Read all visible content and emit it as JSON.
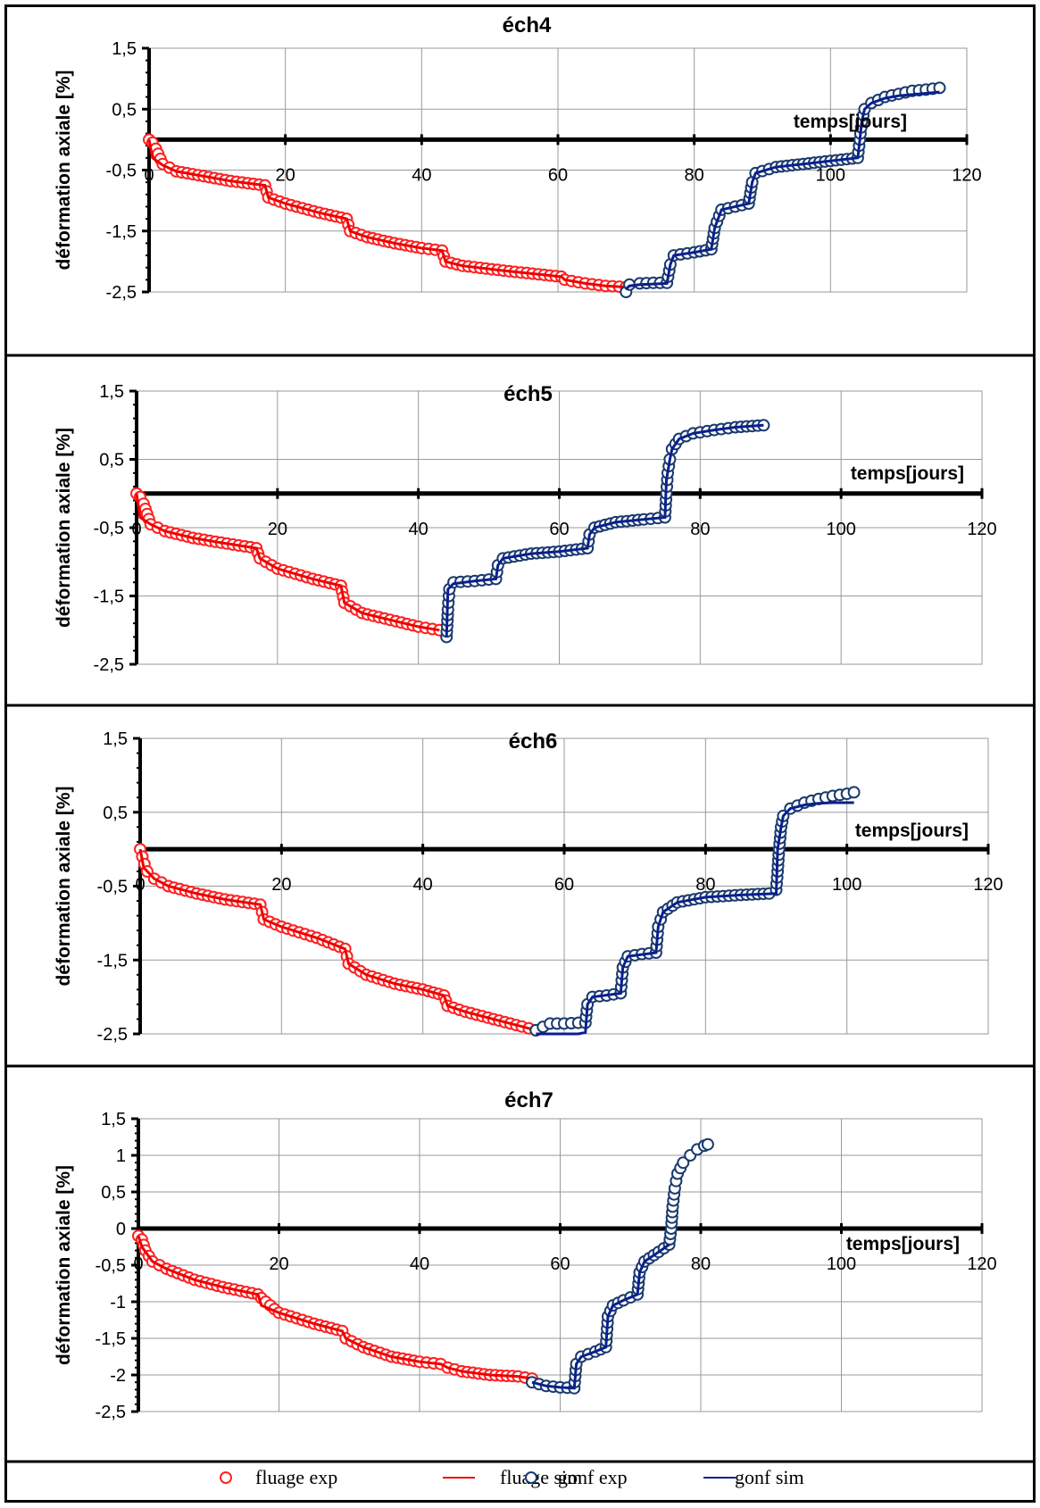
{
  "colors": {
    "fluage_exp": "#ff2020",
    "fluage_sim": "#ee0000",
    "gonf_exp": "#1a3a6e",
    "gonf_sim": "#0a1f8f",
    "border": "#000000",
    "grid": "#9a9a9a"
  },
  "legend": {
    "items": [
      {
        "marker": "circle",
        "series": "fluage_exp",
        "label": "fluage exp"
      },
      {
        "marker": "line",
        "series": "fluage_sim",
        "label": "fluage sim"
      },
      {
        "marker": "circle",
        "series": "gonf_exp",
        "label": "gonf exp"
      },
      {
        "marker": "line",
        "series": "gonf_sim",
        "label": "gonf sim"
      }
    ]
  },
  "chart_data": [
    {
      "type": "scatter",
      "title": "éch4",
      "xlabel": "temps[jours]",
      "ylabel": "déformation axiale [%]",
      "xlim": [
        0,
        120
      ],
      "ylim": [
        -2.5,
        1.5
      ],
      "xticks": [
        "0",
        "20",
        "40",
        "60",
        "80",
        "100",
        "120"
      ],
      "yticks": [
        "1,5",
        "0,5",
        "-0,5",
        "-1,5",
        "-2,5"
      ],
      "grid": true,
      "series": [
        {
          "name": "fluage exp",
          "key": "fluage_exp",
          "kind": "markers",
          "x": [
            0,
            0.5,
            1,
            2,
            4,
            8,
            12,
            17,
            17.5,
            20,
            25,
            29,
            29.5,
            32,
            36,
            40,
            43,
            43.5,
            46,
            52,
            58,
            60.5,
            61,
            64,
            67,
            70
          ],
          "y": [
            0.0,
            -0.05,
            -0.15,
            -0.4,
            -0.52,
            -0.6,
            -0.68,
            -0.75,
            -0.95,
            -1.05,
            -1.2,
            -1.3,
            -1.5,
            -1.6,
            -1.7,
            -1.78,
            -1.82,
            -2.0,
            -2.07,
            -2.15,
            -2.22,
            -2.25,
            -2.3,
            -2.36,
            -2.4,
            -2.42
          ]
        },
        {
          "name": "fluage sim",
          "key": "fluage_sim",
          "kind": "line",
          "x": [
            0,
            0.5,
            2,
            4,
            8,
            12,
            17,
            17.5,
            20,
            25,
            29,
            29.5,
            32,
            36,
            40,
            43,
            43.5,
            46,
            52,
            58,
            60.5,
            61,
            64,
            67,
            70
          ],
          "y": [
            0.0,
            -0.3,
            -0.42,
            -0.52,
            -0.6,
            -0.68,
            -0.75,
            -0.95,
            -1.05,
            -1.2,
            -1.3,
            -1.5,
            -1.6,
            -1.7,
            -1.78,
            -1.82,
            -2.0,
            -2.07,
            -2.15,
            -2.22,
            -2.25,
            -2.3,
            -2.36,
            -2.4,
            -2.42
          ]
        },
        {
          "name": "gonf exp",
          "key": "gonf_exp",
          "kind": "markers",
          "x": [
            70,
            70.5,
            72,
            74,
            76,
            76.5,
            77,
            80,
            82.5,
            83,
            84,
            86,
            88,
            88.5,
            89,
            92,
            96,
            100,
            104,
            104.3,
            104.6,
            105,
            106,
            108,
            110,
            112,
            114,
            116
          ],
          "y": [
            -2.5,
            -2.38,
            -2.36,
            -2.35,
            -2.35,
            -2.05,
            -1.9,
            -1.85,
            -1.8,
            -1.45,
            -1.15,
            -1.1,
            -1.05,
            -0.7,
            -0.55,
            -0.45,
            -0.4,
            -0.35,
            -0.3,
            0.0,
            0.3,
            0.5,
            0.6,
            0.7,
            0.75,
            0.8,
            0.82,
            0.85
          ]
        },
        {
          "name": "gonf sim",
          "key": "gonf_sim",
          "kind": "line",
          "x": [
            70,
            70.5,
            72,
            74,
            76,
            76.5,
            77,
            80,
            82.5,
            83,
            84,
            86,
            88,
            88.5,
            89,
            92,
            96,
            100,
            104,
            104.3,
            104.6,
            105,
            106,
            108,
            110,
            112,
            114,
            116
          ],
          "y": [
            -2.45,
            -2.4,
            -2.38,
            -2.37,
            -2.36,
            -2.05,
            -1.9,
            -1.85,
            -1.8,
            -1.45,
            -1.15,
            -1.1,
            -1.05,
            -0.7,
            -0.55,
            -0.45,
            -0.4,
            -0.35,
            -0.3,
            0.0,
            0.3,
            0.5,
            0.6,
            0.68,
            0.72,
            0.74,
            0.76,
            0.78
          ]
        }
      ]
    },
    {
      "type": "scatter",
      "title": "éch5",
      "xlabel": "temps[jours]",
      "ylabel": "déformation axiale [%]",
      "xlim": [
        0,
        120
      ],
      "ylim": [
        -2.5,
        1.5
      ],
      "xticks": [
        "0",
        "20",
        "40",
        "60",
        "80",
        "100",
        "120"
      ],
      "yticks": [
        "1,5",
        "0,5",
        "-0,5",
        "-1,5",
        "-2,5"
      ],
      "grid": true,
      "series": [
        {
          "name": "fluage exp",
          "key": "fluage_exp",
          "kind": "markers",
          "x": [
            0,
            0.5,
            1,
            2,
            4,
            8,
            12,
            17,
            17.5,
            20,
            25,
            29,
            29.5,
            32,
            36,
            40,
            43
          ],
          "y": [
            0.0,
            -0.05,
            -0.15,
            -0.45,
            -0.55,
            -0.65,
            -0.72,
            -0.8,
            -0.95,
            -1.1,
            -1.25,
            -1.35,
            -1.6,
            -1.75,
            -1.85,
            -1.95,
            -2.0
          ]
        },
        {
          "name": "fluage sim",
          "key": "fluage_sim",
          "kind": "line",
          "x": [
            0,
            0.5,
            2,
            4,
            8,
            12,
            17,
            17.5,
            20,
            25,
            29,
            29.5,
            32,
            36,
            40,
            43
          ],
          "y": [
            0.0,
            -0.35,
            -0.45,
            -0.55,
            -0.65,
            -0.72,
            -0.8,
            -0.95,
            -1.1,
            -1.25,
            -1.35,
            -1.6,
            -1.75,
            -1.85,
            -1.95,
            -2.0
          ]
        },
        {
          "name": "gonf exp",
          "key": "gonf_exp",
          "kind": "markers",
          "x": [
            44,
            44.2,
            44.4,
            45,
            48,
            51,
            51.3,
            52,
            56,
            60,
            64,
            64.3,
            65,
            68,
            72,
            75,
            75.2,
            75.4,
            75.7,
            76,
            77,
            79,
            82,
            85,
            89
          ],
          "y": [
            -2.1,
            -1.7,
            -1.4,
            -1.3,
            -1.28,
            -1.25,
            -1.05,
            -0.95,
            -0.88,
            -0.85,
            -0.8,
            -0.6,
            -0.5,
            -0.42,
            -0.38,
            -0.35,
            0.0,
            0.3,
            0.5,
            0.65,
            0.8,
            0.88,
            0.93,
            0.97,
            1.0
          ]
        },
        {
          "name": "gonf sim",
          "key": "gonf_sim",
          "kind": "line",
          "x": [
            44,
            44.2,
            45,
            48,
            51,
            51.3,
            52,
            56,
            60,
            64,
            64.3,
            65,
            68,
            72,
            75,
            75.2,
            75.7,
            76,
            77,
            79,
            82,
            85,
            89
          ],
          "y": [
            -2.1,
            -1.4,
            -1.32,
            -1.28,
            -1.25,
            -1.05,
            -0.95,
            -0.88,
            -0.85,
            -0.8,
            -0.6,
            -0.5,
            -0.42,
            -0.38,
            -0.35,
            0.2,
            0.5,
            0.65,
            0.8,
            0.88,
            0.93,
            0.97,
            1.0
          ]
        }
      ]
    },
    {
      "type": "scatter",
      "title": "éch6",
      "xlabel": "temps[jours]",
      "ylabel": "déformation axiale [%]",
      "xlim": [
        0,
        120
      ],
      "ylim": [
        -2.5,
        1.5
      ],
      "xticks": [
        "0",
        "20",
        "40",
        "60",
        "80",
        "100",
        "120"
      ],
      "yticks": [
        "1,5",
        "0,5",
        "-0,5",
        "-1,5",
        "-2,5"
      ],
      "grid": true,
      "series": [
        {
          "name": "fluage exp",
          "key": "fluage_exp",
          "kind": "markers",
          "x": [
            0,
            0.3,
            0.6,
            1,
            2,
            4,
            8,
            12,
            17,
            17.5,
            20,
            25,
            29,
            29.5,
            32,
            36,
            40,
            43,
            43.5,
            46,
            50,
            54,
            56
          ],
          "y": [
            0.0,
            -0.1,
            -0.2,
            -0.3,
            -0.4,
            -0.5,
            -0.6,
            -0.68,
            -0.75,
            -0.95,
            -1.05,
            -1.2,
            -1.35,
            -1.55,
            -1.7,
            -1.82,
            -1.9,
            -1.98,
            -2.12,
            -2.2,
            -2.3,
            -2.4,
            -2.45
          ]
        },
        {
          "name": "fluage sim",
          "key": "fluage_sim",
          "kind": "line",
          "x": [
            0,
            0.5,
            2,
            4,
            8,
            12,
            17,
            17.5,
            20,
            25,
            29,
            29.5,
            32,
            36,
            40,
            43,
            43.5,
            46,
            50,
            54,
            56
          ],
          "y": [
            0.0,
            -0.25,
            -0.4,
            -0.5,
            -0.6,
            -0.68,
            -0.75,
            -0.95,
            -1.05,
            -1.2,
            -1.35,
            -1.55,
            -1.7,
            -1.82,
            -1.9,
            -1.98,
            -2.12,
            -2.2,
            -2.3,
            -2.4,
            -2.45
          ]
        },
        {
          "name": "gonf exp",
          "key": "gonf_exp",
          "kind": "markers",
          "x": [
            56,
            58,
            60,
            62,
            63,
            63.3,
            64,
            66,
            68,
            68.3,
            69,
            71,
            73,
            73.3,
            74,
            76,
            80,
            85,
            89,
            90,
            90.2,
            90.4,
            90.7,
            91,
            92,
            94,
            96,
            98,
            100,
            101
          ],
          "y": [
            -2.45,
            -2.36,
            -2.36,
            -2.35,
            -2.35,
            -2.1,
            -2.0,
            -1.98,
            -1.95,
            -1.6,
            -1.45,
            -1.42,
            -1.4,
            -1.05,
            -0.85,
            -0.72,
            -0.65,
            -0.62,
            -0.6,
            -0.55,
            -0.3,
            0.0,
            0.3,
            0.45,
            0.55,
            0.63,
            0.68,
            0.72,
            0.75,
            0.77
          ]
        },
        {
          "name": "gonf sim",
          "key": "gonf_sim",
          "kind": "line",
          "x": [
            56,
            58,
            62,
            63,
            63.3,
            64,
            68,
            68.3,
            69,
            73,
            73.3,
            74,
            76,
            80,
            85,
            90,
            90.2,
            90.7,
            91,
            92,
            94,
            96,
            98,
            101
          ],
          "y": [
            -2.5,
            -2.5,
            -2.5,
            -2.48,
            -2.1,
            -2.0,
            -1.95,
            -1.6,
            -1.45,
            -1.4,
            -1.05,
            -0.85,
            -0.72,
            -0.65,
            -0.62,
            -0.6,
            0.0,
            0.3,
            0.45,
            0.55,
            0.6,
            0.62,
            0.63,
            0.63
          ]
        }
      ]
    },
    {
      "type": "scatter",
      "title": "éch7",
      "xlabel": "temps[jours]",
      "ylabel": "déformation axiale [%]",
      "xlim": [
        0,
        120
      ],
      "ylim": [
        -2.5,
        1.5
      ],
      "xticks": [
        "0",
        "20",
        "40",
        "60",
        "80",
        "100",
        "120"
      ],
      "yticks": [
        "1,5",
        "1",
        "0,5",
        "0",
        "-0,5",
        "-1",
        "-1,5",
        "-2",
        "-2,5"
      ],
      "grid": true,
      "series": [
        {
          "name": "fluage exp",
          "key": "fluage_exp",
          "kind": "markers",
          "x": [
            0,
            0.5,
            1,
            2,
            4,
            8,
            12,
            17,
            17.5,
            20,
            25,
            29,
            29.5,
            32,
            36,
            40,
            43,
            44,
            46,
            50,
            54,
            56
          ],
          "y": [
            -0.1,
            -0.15,
            -0.3,
            -0.45,
            -0.55,
            -0.7,
            -0.8,
            -0.9,
            -0.95,
            -1.15,
            -1.3,
            -1.4,
            -1.5,
            -1.62,
            -1.75,
            -1.82,
            -1.85,
            -1.9,
            -1.95,
            -2.0,
            -2.02,
            -2.05
          ]
        },
        {
          "name": "fluage sim",
          "key": "fluage_sim",
          "kind": "line",
          "x": [
            0,
            0.5,
            2,
            4,
            8,
            12,
            17,
            17.5,
            20,
            25,
            29,
            29.5,
            32,
            36,
            40,
            43,
            44,
            46,
            50,
            54,
            56
          ],
          "y": [
            -0.1,
            -0.25,
            -0.45,
            -0.55,
            -0.7,
            -0.8,
            -0.9,
            -1.05,
            -1.15,
            -1.3,
            -1.4,
            -1.5,
            -1.62,
            -1.75,
            -1.82,
            -1.85,
            -1.9,
            -1.95,
            -2.0,
            -2.02,
            -2.05
          ]
        },
        {
          "name": "gonf exp",
          "key": "gonf_exp",
          "kind": "markers",
          "x": [
            56,
            58,
            60,
            62,
            62.3,
            63,
            65,
            66.5,
            66.8,
            67.5,
            69,
            71,
            71.3,
            72,
            74,
            75.5,
            75.8,
            76,
            76.3,
            76.7,
            77.5,
            78.5,
            79.5,
            80.5,
            81
          ],
          "y": [
            -2.1,
            -2.15,
            -2.17,
            -2.18,
            -1.85,
            -1.75,
            -1.68,
            -1.62,
            -1.2,
            -1.05,
            -0.98,
            -0.9,
            -0.6,
            -0.45,
            -0.32,
            -0.22,
            0.0,
            0.3,
            0.55,
            0.75,
            0.9,
            1.0,
            1.08,
            1.13,
            1.15
          ]
        },
        {
          "name": "gonf sim",
          "key": "gonf_sim",
          "kind": "line",
          "x": [
            56,
            58,
            60,
            62,
            62.3,
            63,
            65,
            66.5,
            66.8,
            67.5,
            69,
            71,
            71.3,
            72,
            74,
            75.5
          ],
          "y": [
            -2.1,
            -2.15,
            -2.17,
            -2.18,
            -1.85,
            -1.75,
            -1.68,
            -1.62,
            -1.2,
            -1.05,
            -0.98,
            -0.9,
            -0.6,
            -0.45,
            -0.32,
            -0.22
          ]
        }
      ]
    }
  ]
}
